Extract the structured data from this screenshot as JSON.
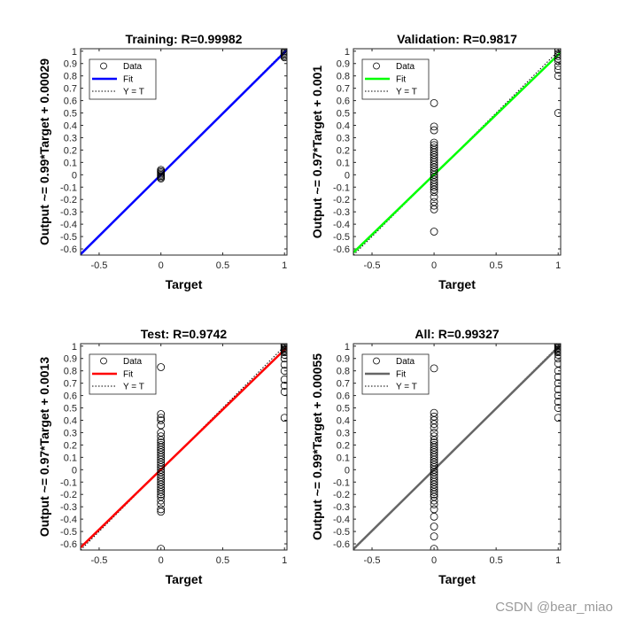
{
  "chart_data": [
    {
      "type": "scatter",
      "title": "Training: R=0.99982",
      "xlabel": "Target",
      "ylabel": "Output ~= 0.99*Target + 0.00029",
      "xlim": [
        -0.65,
        1.02
      ],
      "ylim": [
        -0.65,
        1.02
      ],
      "xticks": [
        -0.5,
        0,
        0.5,
        1
      ],
      "yticks": [
        -0.6,
        -0.5,
        -0.4,
        -0.3,
        -0.2,
        -0.1,
        0,
        0.1,
        0.2,
        0.3,
        0.4,
        0.5,
        0.6,
        0.7,
        0.8,
        0.9,
        1
      ],
      "fit": {
        "slope": 0.99,
        "intercept": 0.00029,
        "color": "#0000ff"
      },
      "legend": [
        "Data",
        "Fit",
        "Y = T"
      ],
      "points": {
        "t0": [
          0.04,
          0.03,
          0.02,
          0.01,
          0.0,
          -0.01,
          -0.02,
          -0.03
        ],
        "t1": [
          1.0,
          0.99,
          0.98,
          0.97,
          0.96,
          0.95
        ]
      }
    },
    {
      "type": "scatter",
      "title": "Validation: R=0.9817",
      "xlabel": "Target",
      "ylabel": "Output ~= 0.97*Target + 0.001",
      "xlim": [
        -0.65,
        1.02
      ],
      "ylim": [
        -0.65,
        1.02
      ],
      "xticks": [
        -0.5,
        0,
        0.5,
        1
      ],
      "yticks": [
        -0.6,
        -0.5,
        -0.4,
        -0.3,
        -0.2,
        -0.1,
        0,
        0.1,
        0.2,
        0.3,
        0.4,
        0.5,
        0.6,
        0.7,
        0.8,
        0.9,
        1
      ],
      "fit": {
        "slope": 0.97,
        "intercept": 0.001,
        "color": "#00ff00"
      },
      "legend": [
        "Data",
        "Fit",
        "Y = T"
      ],
      "points": {
        "t0": [
          0.58,
          0.39,
          0.36,
          0.26,
          0.24,
          0.22,
          0.2,
          0.18,
          0.16,
          0.14,
          0.12,
          0.1,
          0.08,
          0.06,
          0.04,
          0.02,
          0.0,
          -0.02,
          -0.04,
          -0.06,
          -0.08,
          -0.1,
          -0.12,
          -0.14,
          -0.18,
          -0.22,
          -0.25,
          -0.28,
          -0.46
        ],
        "t1": [
          1.02,
          1.0,
          0.98,
          0.96,
          0.94,
          0.92,
          0.88,
          0.85,
          0.8,
          0.5
        ]
      }
    },
    {
      "type": "scatter",
      "title": "Test: R=0.9742",
      "xlabel": "Target",
      "ylabel": "Output ~= 0.97*Target + 0.0013",
      "xlim": [
        -0.65,
        1.02
      ],
      "ylim": [
        -0.65,
        1.02
      ],
      "xticks": [
        -0.5,
        0,
        0.5,
        1
      ],
      "yticks": [
        -0.6,
        -0.5,
        -0.4,
        -0.3,
        -0.2,
        -0.1,
        0,
        0.1,
        0.2,
        0.3,
        0.4,
        0.5,
        0.6,
        0.7,
        0.8,
        0.9,
        1
      ],
      "fit": {
        "slope": 0.97,
        "intercept": 0.0013,
        "color": "#ff0000"
      },
      "legend": [
        "Data",
        "Fit",
        "Y = T"
      ],
      "points": {
        "t0": [
          0.83,
          0.45,
          0.42,
          0.4,
          0.36,
          0.3,
          0.27,
          0.24,
          0.22,
          0.2,
          0.18,
          0.16,
          0.14,
          0.12,
          0.1,
          0.08,
          0.06,
          0.04,
          0.02,
          0.0,
          -0.02,
          -0.04,
          -0.06,
          -0.08,
          -0.1,
          -0.12,
          -0.14,
          -0.16,
          -0.18,
          -0.2,
          -0.22,
          -0.25,
          -0.28,
          -0.32,
          -0.34,
          -0.64
        ],
        "t1": [
          1.02,
          1.01,
          1.0,
          0.99,
          0.98,
          0.97,
          0.96,
          0.95,
          0.93,
          0.9,
          0.85,
          0.8,
          0.73,
          0.68,
          0.63,
          0.42
        ]
      }
    },
    {
      "type": "scatter",
      "title": "All: R=0.99327",
      "xlabel": "Target",
      "ylabel": "Output ~= 0.99*Target + 0.00055",
      "xlim": [
        -0.65,
        1.02
      ],
      "ylim": [
        -0.65,
        1.02
      ],
      "xticks": [
        -0.5,
        0,
        0.5,
        1
      ],
      "yticks": [
        -0.6,
        -0.5,
        -0.4,
        -0.3,
        -0.2,
        -0.1,
        0,
        0.1,
        0.2,
        0.3,
        0.4,
        0.5,
        0.6,
        0.7,
        0.8,
        0.9,
        1
      ],
      "fit": {
        "slope": 0.99,
        "intercept": 0.00055,
        "color": "#666666"
      },
      "legend": [
        "Data",
        "Fit",
        "Y = T"
      ],
      "points": {
        "t0": [
          0.82,
          0.46,
          0.43,
          0.4,
          0.37,
          0.34,
          0.3,
          0.27,
          0.24,
          0.22,
          0.2,
          0.18,
          0.16,
          0.14,
          0.12,
          0.1,
          0.08,
          0.06,
          0.04,
          0.02,
          0.0,
          -0.02,
          -0.04,
          -0.06,
          -0.08,
          -0.1,
          -0.12,
          -0.14,
          -0.16,
          -0.18,
          -0.2,
          -0.22,
          -0.25,
          -0.28,
          -0.32,
          -0.38,
          -0.46,
          -0.54,
          -0.64
        ],
        "t1": [
          1.02,
          1.01,
          1.0,
          0.99,
          0.98,
          0.97,
          0.96,
          0.95,
          0.93,
          0.9,
          0.86,
          0.8,
          0.75,
          0.7,
          0.65,
          0.6,
          0.55,
          0.5,
          0.42
        ]
      }
    }
  ],
  "watermark": "CSDN @bear_miao"
}
